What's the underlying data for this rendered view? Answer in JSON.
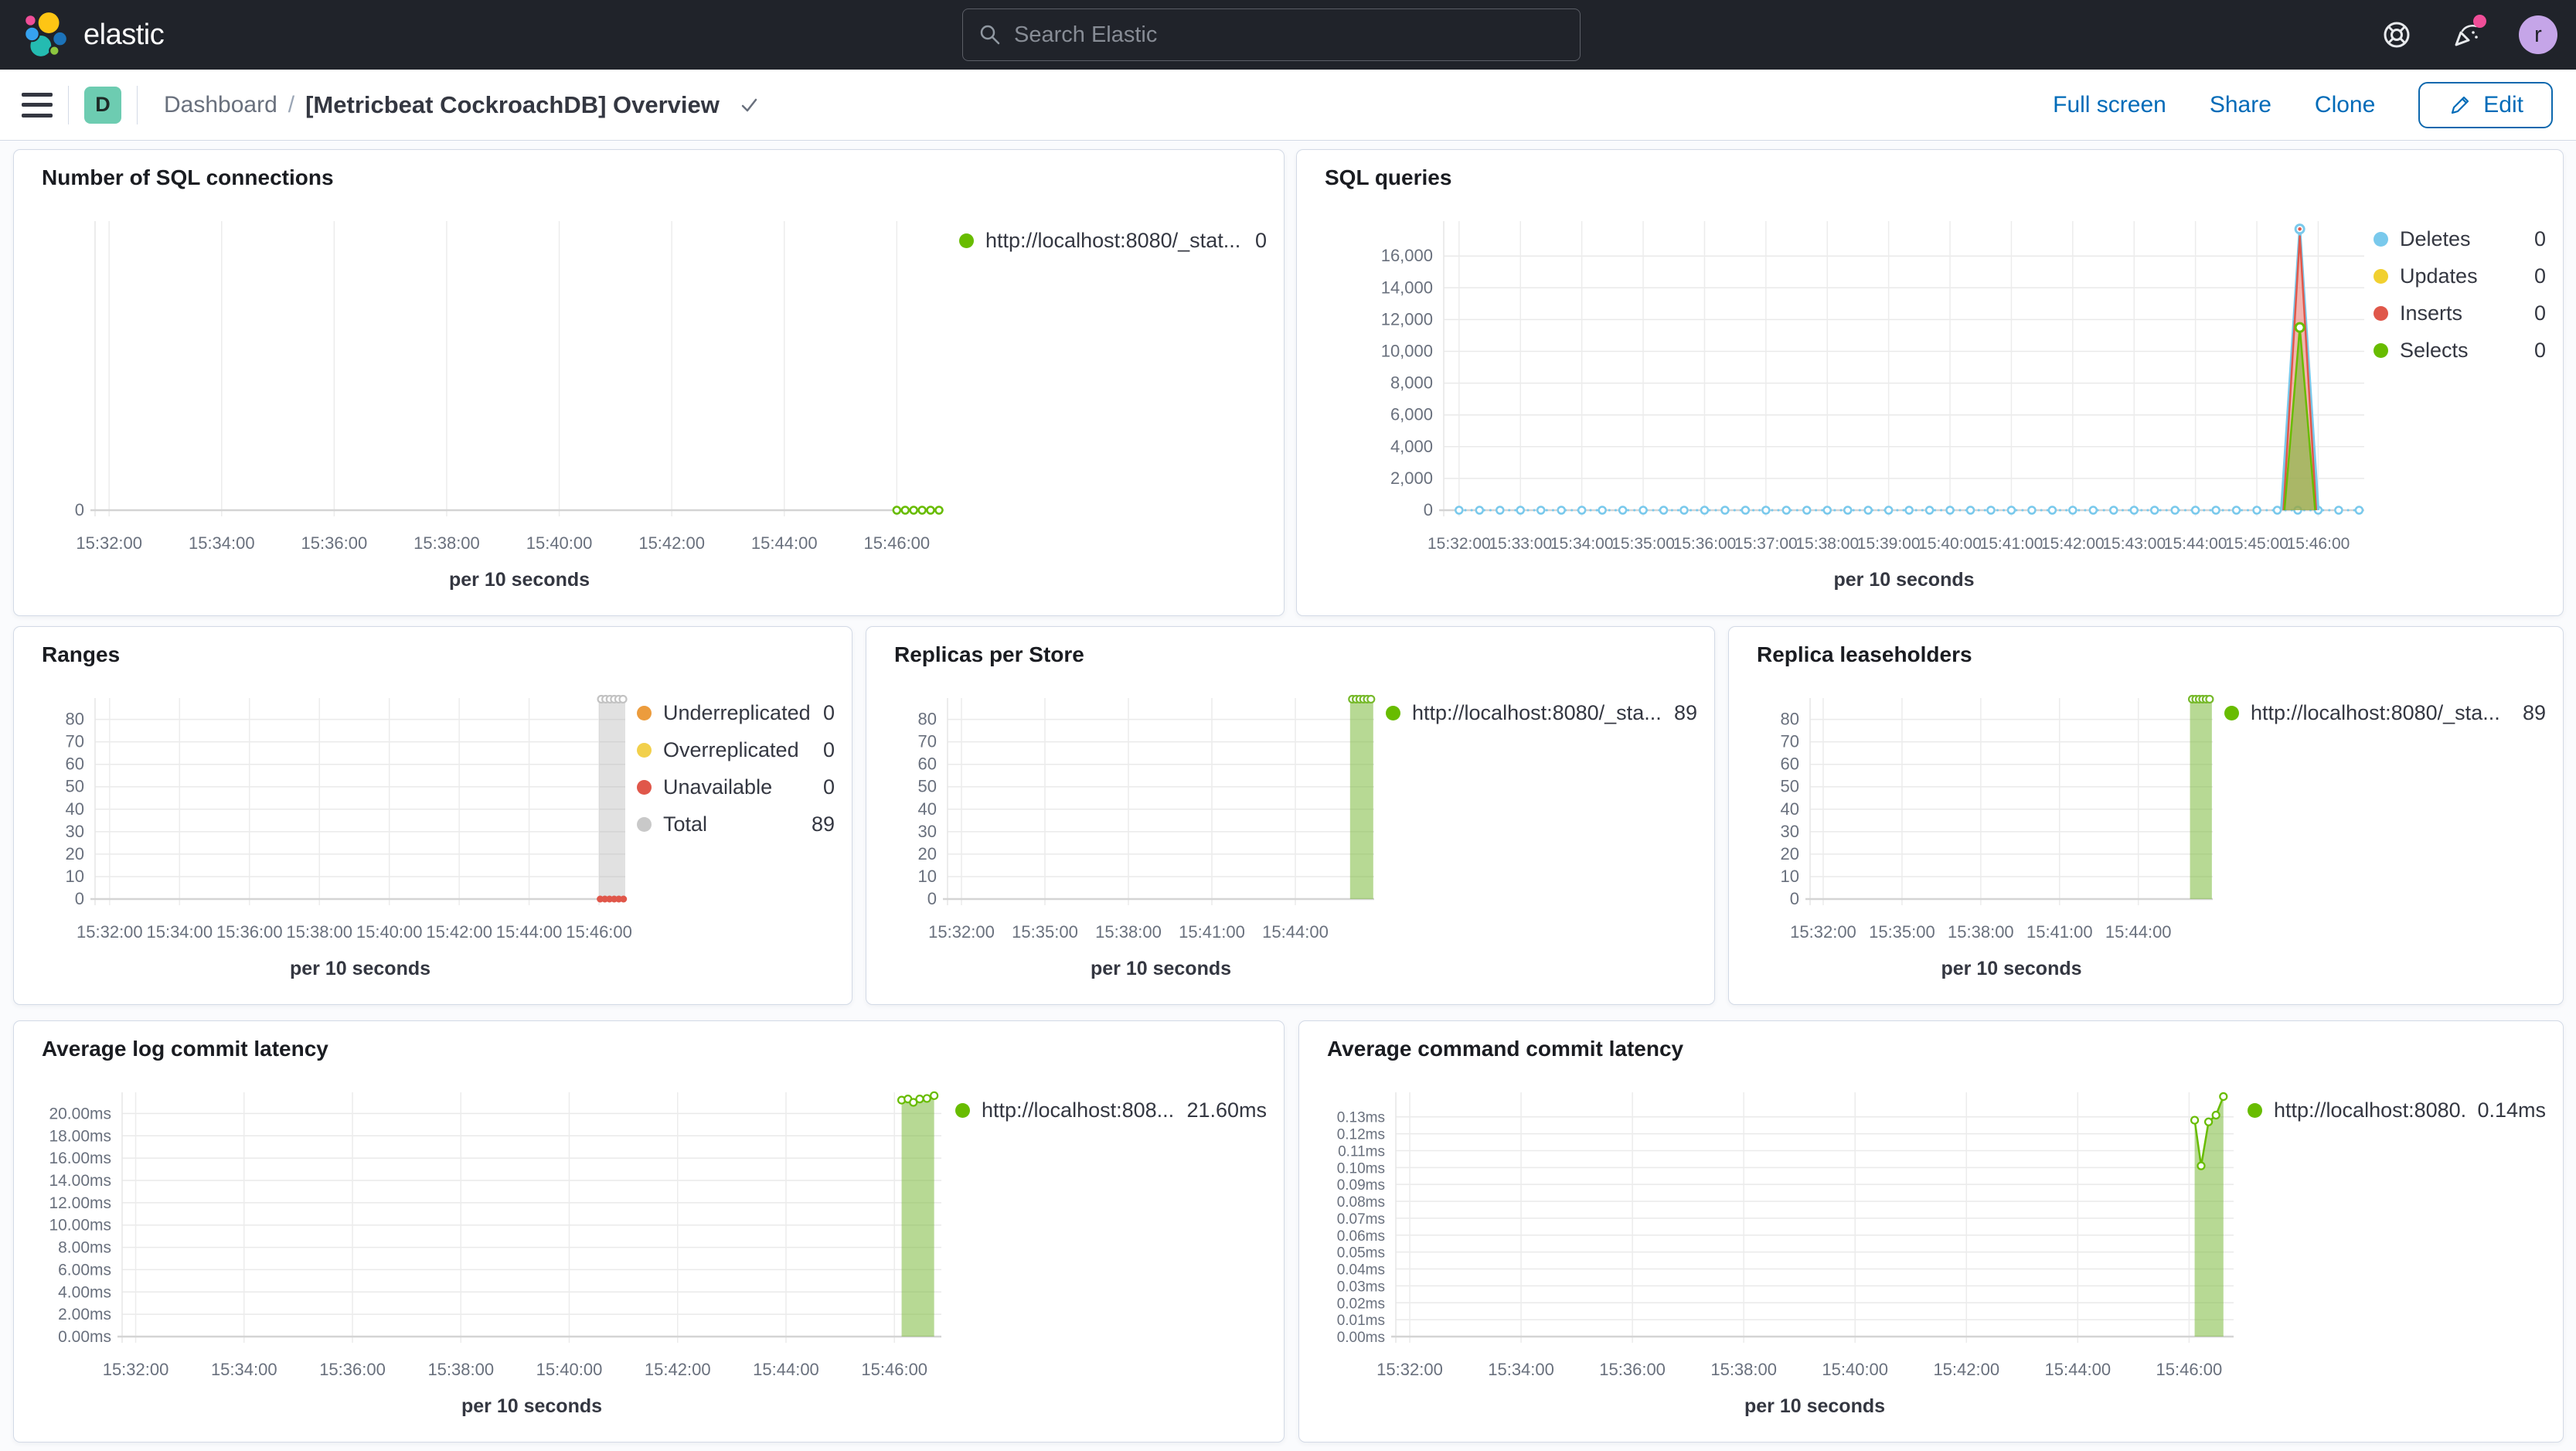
{
  "top_nav": {
    "logo_text": "elastic",
    "search_placeholder": "Search Elastic",
    "avatar_initial": "r",
    "notification_color": "#F04E98",
    "avatar_color": "#C5A5E8"
  },
  "header": {
    "breadcrumb_root": "Dashboard",
    "breadcrumb_separator": "/",
    "title": "[Metricbeat CockroachDB] Overview",
    "app_badge": "D",
    "app_badge_color": "#6DCCB1",
    "actions": {
      "full_screen": "Full screen",
      "share": "Share",
      "clone": "Clone",
      "edit": "Edit"
    }
  },
  "colors": {
    "green": "#68BC00",
    "light_blue": "#79C9EC",
    "red": "#E0574A",
    "yellow": "#F1D030",
    "orange": "#EC9C3D",
    "gray": "#C9C9C9",
    "link_blue": "#006BB8"
  },
  "panels": [
    {
      "title": "Number of SQL connections",
      "chart_data": {
        "type": "line",
        "x_axis_label": "per 10 seconds",
        "x_domain": [
          "15:31:45",
          "15:46:50"
        ],
        "x_ticks": [
          "15:32:00",
          "15:34:00",
          "15:36:00",
          "15:38:00",
          "15:40:00",
          "15:42:00",
          "15:44:00",
          "15:46:00"
        ],
        "y_ticks": [
          {
            "v": 0,
            "label": "0"
          }
        ],
        "y_max": 1,
        "series": [
          {
            "name": "http://localhost:8080/_stat...",
            "kind": "zeroline",
            "color": "#68BC00",
            "from": "15:46:00",
            "to": "15:46:45",
            "marker_step_s": 9,
            "value": 0
          }
        ]
      },
      "legend": [
        {
          "label": "http://localhost:8080/_stat...",
          "value": "0",
          "color": "#68BC00"
        }
      ]
    },
    {
      "title": "SQL queries",
      "chart_data": {
        "type": "line",
        "x_axis_label": "per 10 seconds",
        "x_domain": [
          "15:31:45",
          "15:46:45"
        ],
        "x_ticks": [
          "15:32:00",
          "15:33:00",
          "15:34:00",
          "15:35:00",
          "15:36:00",
          "15:37:00",
          "15:38:00",
          "15:39:00",
          "15:40:00",
          "15:41:00",
          "15:42:00",
          "15:43:00",
          "15:44:00",
          "15:45:00",
          "15:46:00"
        ],
        "y_ticks": [
          {
            "v": 0,
            "label": "0"
          },
          {
            "v": 2000,
            "label": "2,000"
          },
          {
            "v": 4000,
            "label": "4,000"
          },
          {
            "v": 6000,
            "label": "6,000"
          },
          {
            "v": 8000,
            "label": "8,000"
          },
          {
            "v": 10000,
            "label": "10,000"
          },
          {
            "v": 12000,
            "label": "12,000"
          },
          {
            "v": 14000,
            "label": "14,000"
          },
          {
            "v": 16000,
            "label": "16,000"
          }
        ],
        "y_max": 18200,
        "series": [
          {
            "name": "Deletes",
            "kind": "zeroline",
            "color": "#79C9EC",
            "from": "15:32:00",
            "to": "15:46:40",
            "marker_step_s": 20,
            "value": 0
          },
          {
            "name": "Deletes",
            "kind": "spike",
            "color": "#79C9EC",
            "stroke_w": 3.5,
            "peak_marker": true,
            "inner_dot": "#E0574A",
            "points": [
              [
                "15:45:24",
                0
              ],
              [
                "15:45:42",
                17700
              ],
              [
                "15:46:00",
                0
              ]
            ]
          },
          {
            "name": "Inserts",
            "kind": "spike",
            "color": "#E0574A",
            "fill": "rgba(233,119,109,0.55)",
            "points": [
              [
                "15:45:26",
                0
              ],
              [
                "15:45:42",
                17250
              ],
              [
                "15:45:58",
                0
              ]
            ]
          },
          {
            "name": "Selects",
            "kind": "spike",
            "color": "#68BC00",
            "fill": "rgba(124,186,60,0.62)",
            "peak_marker": true,
            "points": [
              [
                "15:45:27",
                0
              ],
              [
                "15:45:42",
                11500
              ],
              [
                "15:45:57",
                0
              ]
            ]
          }
        ]
      },
      "legend": [
        {
          "label": "Deletes",
          "value": "0",
          "color": "#79C9EC"
        },
        {
          "label": "Updates",
          "value": "0",
          "color": "#F1D030"
        },
        {
          "label": "Inserts",
          "value": "0",
          "color": "#E0574A"
        },
        {
          "label": "Selects",
          "value": "0",
          "color": "#68BC00"
        }
      ]
    },
    {
      "title": "Ranges",
      "chart_data": {
        "type": "bar",
        "x_axis_label": "per 10 seconds",
        "x_domain": [
          "15:31:35",
          "15:46:45"
        ],
        "x_ticks": [
          "15:32:00",
          "15:34:00",
          "15:36:00",
          "15:38:00",
          "15:40:00",
          "15:42:00",
          "15:44:00",
          "15:46:00"
        ],
        "y_ticks": [
          {
            "v": 0,
            "label": "0"
          },
          {
            "v": 10,
            "label": "10"
          },
          {
            "v": 20,
            "label": "20"
          },
          {
            "v": 30,
            "label": "30"
          },
          {
            "v": 40,
            "label": "40"
          },
          {
            "v": 50,
            "label": "50"
          },
          {
            "v": 60,
            "label": "60"
          },
          {
            "v": 70,
            "label": "70"
          },
          {
            "v": 80,
            "label": "80"
          }
        ],
        "y_max": 89.5,
        "series": [
          {
            "name": "Total",
            "kind": "bar",
            "fill": "rgba(176,176,176,0.38)",
            "marker_color": "#C2C2C2",
            "from": "15:46:00",
            "to": "15:46:45",
            "value": 89
          },
          {
            "name": "Unavailable",
            "kind": "markers",
            "color": "#E0574A",
            "points": [
              [
                "15:46:02",
                0
              ],
              [
                "15:46:10",
                0
              ],
              [
                "15:46:18",
                0
              ],
              [
                "15:46:26",
                0
              ],
              [
                "15:46:34",
                0
              ],
              [
                "15:46:42",
                0
              ]
            ]
          }
        ]
      },
      "legend": [
        {
          "label": "Underreplicated",
          "value": "0",
          "color": "#EC9C3D"
        },
        {
          "label": "Overreplicated",
          "value": "0",
          "color": "#F2D04B"
        },
        {
          "label": "Unavailable",
          "value": "0",
          "color": "#E0574A"
        },
        {
          "label": "Total",
          "value": "89",
          "color": "#C9C9C9"
        }
      ]
    },
    {
      "title": "Replicas per Store",
      "chart_data": {
        "type": "bar",
        "x_axis_label": "per 10 seconds",
        "x_domain": [
          "15:31:30",
          "15:46:50"
        ],
        "x_ticks": [
          "15:32:00",
          "15:35:00",
          "15:38:00",
          "15:41:00",
          "15:44:00"
        ],
        "y_ticks": [
          {
            "v": 0,
            "label": "0"
          },
          {
            "v": 10,
            "label": "10"
          },
          {
            "v": 20,
            "label": "20"
          },
          {
            "v": 30,
            "label": "30"
          },
          {
            "v": 40,
            "label": "40"
          },
          {
            "v": 50,
            "label": "50"
          },
          {
            "v": 60,
            "label": "60"
          },
          {
            "v": 70,
            "label": "70"
          },
          {
            "v": 80,
            "label": "80"
          }
        ],
        "y_max": 89.5,
        "series": [
          {
            "name": "http://localhost:8080/_sta...",
            "kind": "bar",
            "fill": "rgba(124,186,60,0.55)",
            "marker_color": "#76B92A",
            "from": "15:45:58",
            "to": "15:46:48",
            "value": 89
          }
        ]
      },
      "legend": [
        {
          "label": "http://localhost:8080/_sta...",
          "value": "89",
          "color": "#68BC00"
        }
      ]
    },
    {
      "title": "Replica leaseholders",
      "chart_data": {
        "type": "bar",
        "x_axis_label": "per 10 seconds",
        "x_domain": [
          "15:31:30",
          "15:46:50"
        ],
        "x_ticks": [
          "15:32:00",
          "15:35:00",
          "15:38:00",
          "15:41:00",
          "15:44:00"
        ],
        "y_ticks": [
          {
            "v": 0,
            "label": "0"
          },
          {
            "v": 10,
            "label": "10"
          },
          {
            "v": 20,
            "label": "20"
          },
          {
            "v": 30,
            "label": "30"
          },
          {
            "v": 40,
            "label": "40"
          },
          {
            "v": 50,
            "label": "50"
          },
          {
            "v": 60,
            "label": "60"
          },
          {
            "v": 70,
            "label": "70"
          },
          {
            "v": 80,
            "label": "80"
          }
        ],
        "y_max": 89.5,
        "series": [
          {
            "name": "http://localhost:8080/_sta...",
            "kind": "bar",
            "fill": "rgba(124,186,60,0.55)",
            "marker_color": "#76B92A",
            "from": "15:45:58",
            "to": "15:46:48",
            "value": 89
          }
        ]
      },
      "legend": [
        {
          "label": "http://localhost:8080/_sta...",
          "value": "89",
          "color": "#68BC00"
        }
      ]
    },
    {
      "title": "Average log commit latency",
      "chart_data": {
        "type": "area",
        "x_axis_label": "per 10 seconds",
        "x_domain": [
          "15:31:45",
          "15:46:52"
        ],
        "x_ticks": [
          "15:32:00",
          "15:34:00",
          "15:36:00",
          "15:38:00",
          "15:40:00",
          "15:42:00",
          "15:44:00",
          "15:46:00"
        ],
        "y_ticks": [
          {
            "v": 0,
            "label": "0.00ms"
          },
          {
            "v": 2,
            "label": "2.00ms"
          },
          {
            "v": 4,
            "label": "4.00ms"
          },
          {
            "v": 6,
            "label": "6.00ms"
          },
          {
            "v": 8,
            "label": "8.00ms"
          },
          {
            "v": 10,
            "label": "10.00ms"
          },
          {
            "v": 12,
            "label": "12.00ms"
          },
          {
            "v": 14,
            "label": "14.00ms"
          },
          {
            "v": 16,
            "label": "16.00ms"
          },
          {
            "v": 18,
            "label": "18.00ms"
          },
          {
            "v": 20,
            "label": "20.00ms"
          }
        ],
        "y_max": 21.9,
        "series": [
          {
            "name": "http://localhost:808...",
            "kind": "area",
            "color": "#68BC00",
            "fill": "rgba(124,186,60,0.55)",
            "points": [
              [
                "15:46:08",
                21.2
              ],
              [
                "15:46:15",
                21.3
              ],
              [
                "15:46:21",
                21.0
              ],
              [
                "15:46:28",
                21.3
              ],
              [
                "15:46:36",
                21.35
              ],
              [
                "15:46:44",
                21.6
              ]
            ]
          }
        ]
      },
      "legend": [
        {
          "label": "http://localhost:808...",
          "value": "21.60ms",
          "color": "#68BC00"
        }
      ]
    },
    {
      "title": "Average command commit latency",
      "chart_data": {
        "type": "area",
        "x_axis_label": "per 10 seconds",
        "x_domain": [
          "15:31:45",
          "15:46:48"
        ],
        "x_ticks": [
          "15:32:00",
          "15:34:00",
          "15:36:00",
          "15:38:00",
          "15:40:00",
          "15:42:00",
          "15:44:00",
          "15:46:00"
        ],
        "y_ticks": [
          {
            "v": 0,
            "label": "0.00ms"
          },
          {
            "v": 0.01,
            "label": "0.01ms"
          },
          {
            "v": 0.02,
            "label": "0.02ms"
          },
          {
            "v": 0.03,
            "label": "0.03ms"
          },
          {
            "v": 0.04,
            "label": "0.04ms"
          },
          {
            "v": 0.05,
            "label": "0.05ms"
          },
          {
            "v": 0.06,
            "label": "0.06ms"
          },
          {
            "v": 0.07,
            "label": "0.07ms"
          },
          {
            "v": 0.08,
            "label": "0.08ms"
          },
          {
            "v": 0.09,
            "label": "0.09ms"
          },
          {
            "v": 0.1,
            "label": "0.10ms"
          },
          {
            "v": 0.11,
            "label": "0.11ms"
          },
          {
            "v": 0.12,
            "label": "0.12ms"
          },
          {
            "v": 0.13,
            "label": "0.13ms"
          }
        ],
        "y_max": 0.1445,
        "series": [
          {
            "name": "http://localhost:8080...",
            "kind": "area",
            "color": "#68BC00",
            "fill": "rgba(124,186,60,0.55)",
            "points": [
              [
                "15:46:06",
                0.128
              ],
              [
                "15:46:13",
                0.101
              ],
              [
                "15:46:21",
                0.127
              ],
              [
                "15:46:29",
                0.131
              ],
              [
                "15:46:37",
                0.142
              ]
            ]
          }
        ]
      },
      "legend": [
        {
          "label": "http://localhost:8080...",
          "value": "0.14ms",
          "color": "#68BC00"
        }
      ]
    }
  ]
}
